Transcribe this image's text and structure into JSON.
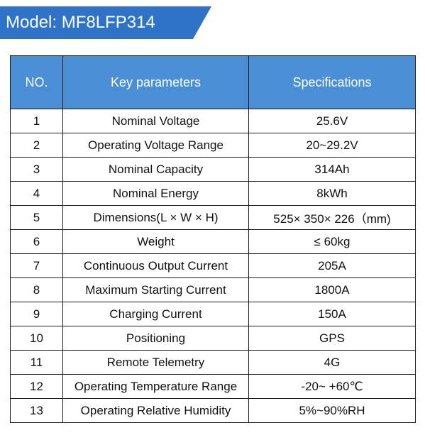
{
  "banner": {
    "title": "Model: MF8LFP314",
    "color": "#2f73c8"
  },
  "table": {
    "header_color": "#4a8ed6",
    "headers": {
      "no": "NO.",
      "key": "Key parameters",
      "spec": "Specifications"
    },
    "rows": [
      {
        "no": "1",
        "key": "Nominal Voltage",
        "spec": "25.6V"
      },
      {
        "no": "2",
        "key": "Operating Voltage Range",
        "spec": "20~29.2V"
      },
      {
        "no": "3",
        "key": "Nominal Capacity",
        "spec": "314Ah"
      },
      {
        "no": "4",
        "key": "Nominal Energy",
        "spec": "8kWh"
      },
      {
        "no": "5",
        "key": "Dimensions(L × W × H)",
        "spec": "525× 350× 226（mm)"
      },
      {
        "no": "6",
        "key": "Weight",
        "spec": "≤ 60kg"
      },
      {
        "no": "7",
        "key": "Continuous Output Current",
        "spec": "205A"
      },
      {
        "no": "8",
        "key": "Maximum Starting Current",
        "spec": "1800A"
      },
      {
        "no": "9",
        "key": "Charging Current",
        "spec": "150A"
      },
      {
        "no": "10",
        "key": "Positioning",
        "spec": "GPS"
      },
      {
        "no": "11",
        "key": "Remote Telemetry",
        "spec": "4G"
      },
      {
        "no": "12",
        "key": "Operating Temperature Range",
        "spec": "-20~ +60℃"
      },
      {
        "no": "13",
        "key": "Operating Relative Humidity",
        "spec": "5%~90%RH"
      }
    ]
  }
}
